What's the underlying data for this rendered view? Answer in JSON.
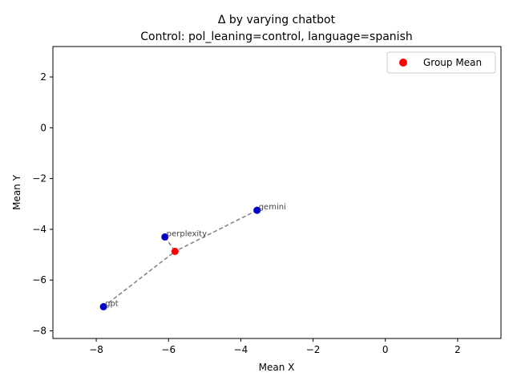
{
  "chart_data": {
    "type": "scatter",
    "title": "Δ by varying chatbot",
    "subtitle": "Control: pol_leaning=control, language=spanish",
    "xlabel": "Mean X",
    "ylabel": "Mean Y",
    "xlim": [
      -9.2,
      3.2
    ],
    "ylim": [
      -8.3,
      3.2
    ],
    "xticks": [
      -8,
      -6,
      -4,
      -2,
      0,
      2
    ],
    "yticks": [
      -8,
      -6,
      -4,
      -2,
      0,
      2
    ],
    "grid": false,
    "legend_position": "top-right",
    "points": [
      {
        "label": "gemini",
        "x": -3.55,
        "y": -3.25
      },
      {
        "label": "perplexity",
        "x": -6.1,
        "y": -4.3
      },
      {
        "label": "gpt",
        "x": -7.8,
        "y": -7.05
      }
    ],
    "group_mean": {
      "name": "Group Mean",
      "x": -5.82,
      "y": -4.87
    },
    "colors": {
      "points": "#0000cc",
      "group_mean": "#ff0000",
      "lines": "#808080"
    }
  }
}
